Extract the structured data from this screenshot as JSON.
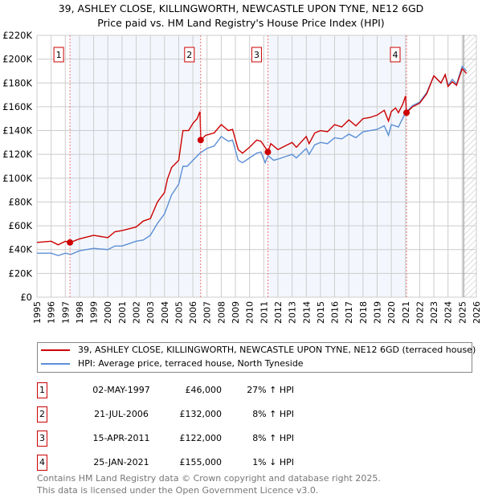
{
  "chart_data": {
    "type": "line",
    "title": "39, ASHLEY CLOSE, KILLINGWORTH, NEWCASTLE UPON TYNE, NE12 6GD",
    "subtitle": "Price paid vs. HM Land Registry's House Price Index (HPI)",
    "xlim": [
      1995,
      2026
    ],
    "ylim": [
      0,
      220000
    ],
    "x_ticks": [
      "1995",
      "1996",
      "1997",
      "1998",
      "1999",
      "2000",
      "2001",
      "2002",
      "2003",
      "2004",
      "2005",
      "2006",
      "2007",
      "2008",
      "2009",
      "2010",
      "2011",
      "2012",
      "2013",
      "2014",
      "2015",
      "2016",
      "2017",
      "2018",
      "2019",
      "2020",
      "2021",
      "2022",
      "2023",
      "2024",
      "2025",
      "2026"
    ],
    "y_ticks": [
      "£0",
      "£20K",
      "£40K",
      "£60K",
      "£80K",
      "£100K",
      "£120K",
      "£140K",
      "£160K",
      "£180K",
      "£200K",
      "£220K"
    ],
    "grid": true,
    "series": [
      {
        "name": "39, ASHLEY CLOSE, KILLINGWORTH, NEWCASTLE UPON TYNE, NE12 6GD (terraced house)",
        "color": "#cc0000",
        "x": [
          1995,
          1996,
          1996.5,
          1997,
          1997.35,
          1998,
          1999,
          2000,
          2000.5,
          2001,
          2002,
          2002.5,
          2003,
          2003.5,
          2004,
          2004.2,
          2004.5,
          2005,
          2005.3,
          2005.7,
          2006,
          2006.3,
          2006.5,
          2006.56,
          2006.9,
          2007.5,
          2008,
          2008.5,
          2008.8,
          2009.2,
          2009.5,
          2010,
          2010.5,
          2010.8,
          2011.15,
          2011.29,
          2011.5,
          2012,
          2012.5,
          2013,
          2013.3,
          2014,
          2014.2,
          2014.6,
          2015,
          2015.5,
          2016,
          2016.5,
          2017,
          2017.5,
          2018,
          2018.5,
          2019,
          2019.5,
          2019.8,
          2020,
          2020.3,
          2020.5,
          2020.8,
          2021.0,
          2021.07,
          2021.5,
          2022,
          2022.5,
          2023,
          2023.5,
          2023.8,
          2024,
          2024.3,
          2024.6,
          2025,
          2025.3
        ],
        "y": [
          46,
          47,
          44,
          47,
          46,
          49,
          52,
          50,
          55,
          56,
          59,
          64,
          66,
          80,
          88,
          99,
          109,
          115,
          140,
          140,
          146,
          150,
          156,
          132,
          136,
          138,
          145,
          140,
          141,
          124,
          121,
          126,
          132,
          131,
          125,
          122,
          129,
          124,
          127,
          130,
          126,
          135,
          129,
          138,
          140,
          139,
          145,
          143,
          149,
          144,
          150,
          151,
          153,
          157,
          148,
          156,
          159,
          155,
          162,
          169,
          155,
          160,
          163,
          171,
          186,
          180,
          187,
          177,
          181,
          178,
          192,
          188
        ]
      },
      {
        "name": "HPI: Average price, terraced house, North Tyneside",
        "color": "#5b8fd6",
        "x": [
          1995,
          1996,
          1996.5,
          1997,
          1997.4,
          1998,
          1999,
          2000,
          2000.5,
          2001,
          2002,
          2002.5,
          2003,
          2003.5,
          2004,
          2004.5,
          2005,
          2005.3,
          2005.6,
          2006,
          2006.5,
          2007,
          2007.5,
          2008,
          2008.5,
          2008.8,
          2009.2,
          2009.5,
          2010,
          2010.5,
          2010.8,
          2011.1,
          2011.3,
          2011.7,
          2012,
          2012.5,
          2013,
          2013.3,
          2014,
          2014.2,
          2014.6,
          2015,
          2015.5,
          2016,
          2016.5,
          2017,
          2017.5,
          2018,
          2018.5,
          2019,
          2019.5,
          2019.8,
          2020,
          2020.5,
          2021,
          2021.5,
          2022,
          2022.5,
          2023,
          2023.5,
          2023.8,
          2024,
          2024.3,
          2024.6,
          2025,
          2025.3
        ],
        "y": [
          37,
          37,
          35,
          37,
          36,
          39,
          41,
          40,
          43,
          43,
          47,
          48,
          52,
          62,
          70,
          86,
          95,
          110,
          110,
          115,
          121,
          125,
          127,
          135,
          131,
          132,
          115,
          113,
          117,
          121,
          122,
          113,
          119,
          115,
          116,
          118,
          120,
          117,
          125,
          120,
          128,
          130,
          129,
          134,
          133,
          137,
          134,
          139,
          140,
          141,
          144,
          136,
          145,
          143,
          155,
          161,
          164,
          172,
          186,
          180,
          187,
          178,
          183,
          179,
          194,
          190
        ]
      }
    ],
    "y_unit_multiplier": 1000,
    "sales": [
      {
        "n": "1",
        "x": 1997.33,
        "y": 46,
        "date": "02-MAY-1997",
        "price": "£46,000",
        "hpi": "27% ↑ HPI"
      },
      {
        "n": "2",
        "x": 2006.55,
        "y": 132,
        "date": "21-JUL-2006",
        "price": "£132,000",
        "hpi": "8% ↑ HPI"
      },
      {
        "n": "3",
        "x": 2011.29,
        "y": 122,
        "date": "15-APR-2011",
        "price": "£122,000",
        "hpi": "8% ↑ HPI"
      },
      {
        "n": "4",
        "x": 2021.07,
        "y": 155,
        "date": "25-JAN-2021",
        "price": "£155,000",
        "hpi": "1% ↓ HPI"
      }
    ],
    "legend_position": "below"
  },
  "footer": [
    "Contains HM Land Registry data © Crown copyright and database right 2025.",
    "This data is licensed under the Open Government Licence v3.0."
  ]
}
